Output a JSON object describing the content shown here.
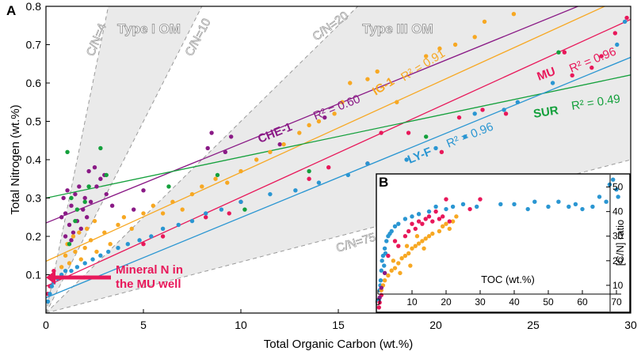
{
  "colors": {
    "MU": "#e8185a",
    "IG-1": "#f7a823",
    "CHE-1": "#8a1a86",
    "SUR": "#14a03c",
    "LY-F": "#2a96d2",
    "mineral": "#e8185a",
    "shade": "#eaeaea"
  },
  "chart_data": [
    {
      "panel_label": "A",
      "type": "scatter",
      "xlabel": "Total Organic Carbon (wt.%)",
      "ylabel": "Total Nitrogen (wt.%)",
      "xlim": [
        0,
        30
      ],
      "ylim": [
        0,
        0.8
      ],
      "xticks": [
        "0",
        "5",
        "10",
        "15",
        "20",
        "25",
        "30"
      ],
      "yticks": [
        "0.1",
        "0.2",
        "0.3",
        "0.4",
        "0.5",
        "0.6",
        "0.7",
        "0.8"
      ],
      "zones": [
        {
          "label": "Type I OM",
          "cn_low": 4,
          "cn_high": 10
        },
        {
          "label": "Type III OM",
          "cn_low": 20,
          "cn_high": 75
        }
      ],
      "cn_lines": [
        {
          "label": "C/N=4",
          "slope": 0.25
        },
        {
          "label": "C/N=10",
          "slope": 0.1
        },
        {
          "label": "C/N=20",
          "slope": 0.05
        },
        {
          "label": "C/N=75",
          "slope": 0.01333
        }
      ],
      "series": [
        {
          "name": "CHE-1",
          "r2_label": "R² = 0.60",
          "fit": [
            0.235,
            0.0207
          ],
          "points": [
            [
              0.9,
              0.3
            ],
            [
              1.1,
              0.32
            ],
            [
              1.3,
              0.28
            ],
            [
              1.5,
              0.31
            ],
            [
              1.7,
              0.33
            ],
            [
              2.0,
              0.3
            ],
            [
              2.3,
              0.29
            ],
            [
              2.6,
              0.33
            ],
            [
              3.0,
              0.36
            ],
            [
              1.0,
              0.26
            ],
            [
              1.2,
              0.23
            ],
            [
              1.4,
              0.21
            ],
            [
              1.6,
              0.24
            ],
            [
              1.9,
              0.27
            ],
            [
              2.2,
              0.37
            ],
            [
              2.5,
              0.38
            ],
            [
              2.8,
              0.35
            ],
            [
              3.1,
              0.31
            ],
            [
              3.4,
              0.28
            ],
            [
              0.8,
              0.25
            ],
            [
              1.0,
              0.2
            ],
            [
              1.3,
              0.19
            ],
            [
              1.8,
              0.22
            ],
            [
              2.1,
              0.25
            ],
            [
              4.5,
              0.27
            ],
            [
              5.0,
              0.32
            ],
            [
              8.5,
              0.47
            ],
            [
              8.3,
              0.43
            ],
            [
              9.5,
              0.46
            ],
            [
              9.2,
              0.42
            ],
            [
              12.0,
              0.44
            ],
            [
              14.3,
              0.51
            ]
          ]
        },
        {
          "name": "IG-1",
          "r2_label": "R² = 0.91",
          "fit": [
            0.135,
            0.0232
          ],
          "points": [
            [
              0.8,
              0.12
            ],
            [
              1.0,
              0.15
            ],
            [
              1.2,
              0.13
            ],
            [
              1.5,
              0.16
            ],
            [
              1.8,
              0.14
            ],
            [
              2.0,
              0.17
            ],
            [
              2.3,
              0.19
            ],
            [
              2.6,
              0.16
            ],
            [
              1.1,
              0.18
            ],
            [
              1.4,
              0.2
            ],
            [
              1.7,
              0.21
            ],
            [
              2.1,
              0.22
            ],
            [
              2.5,
              0.24
            ],
            [
              3.0,
              0.21
            ],
            [
              3.3,
              0.18
            ],
            [
              3.7,
              0.23
            ],
            [
              4.0,
              0.25
            ],
            [
              4.4,
              0.22
            ],
            [
              5.0,
              0.26
            ],
            [
              5.5,
              0.28
            ],
            [
              6.0,
              0.26
            ],
            [
              6.5,
              0.29
            ],
            [
              7.0,
              0.27
            ],
            [
              7.5,
              0.31
            ],
            [
              8.0,
              0.33
            ],
            [
              8.7,
              0.35
            ],
            [
              9.3,
              0.34
            ],
            [
              10.0,
              0.37
            ],
            [
              10.8,
              0.4
            ],
            [
              11.5,
              0.42
            ],
            [
              12.2,
              0.44
            ],
            [
              13.0,
              0.47
            ],
            [
              13.5,
              0.49
            ],
            [
              14.0,
              0.5
            ],
            [
              14.8,
              0.52
            ],
            [
              15.2,
              0.55
            ],
            [
              15.6,
              0.6
            ],
            [
              16.5,
              0.61
            ],
            [
              17.0,
              0.63
            ],
            [
              18.0,
              0.55
            ],
            [
              19.5,
              0.67
            ],
            [
              20.2,
              0.69
            ],
            [
              21.0,
              0.7
            ],
            [
              22.0,
              0.72
            ],
            [
              22.5,
              0.76
            ],
            [
              24.0,
              0.78
            ]
          ]
        },
        {
          "name": "MU",
          "r2_label": "R² = 0.96",
          "fit": [
            0.07,
            0.0232
          ],
          "points": [
            [
              0.1,
              0.05
            ],
            [
              0.2,
              0.07
            ],
            [
              0.3,
              0.09
            ],
            [
              0.4,
              0.11
            ],
            [
              5.0,
              0.18
            ],
            [
              6.0,
              0.2
            ],
            [
              8.2,
              0.25
            ],
            [
              9.4,
              0.26
            ],
            [
              10.0,
              0.29
            ],
            [
              13.5,
              0.35
            ],
            [
              14.5,
              0.38
            ],
            [
              16.5,
              0.39
            ],
            [
              17.2,
              0.47
            ],
            [
              18.6,
              0.47
            ],
            [
              20.3,
              0.42
            ],
            [
              21.2,
              0.51
            ],
            [
              22.4,
              0.53
            ],
            [
              23.6,
              0.52
            ],
            [
              26.6,
              0.68
            ],
            [
              27.0,
              0.62
            ],
            [
              28.0,
              0.64
            ],
            [
              28.5,
              0.67
            ],
            [
              29.2,
              0.73
            ],
            [
              29.8,
              0.77
            ]
          ]
        },
        {
          "name": "SUR",
          "r2_label": "R² = 0.49",
          "fit": [
            0.3,
            0.0107
          ],
          "points": [
            [
              1.1,
              0.42
            ],
            [
              1.3,
              0.3
            ],
            [
              1.6,
              0.27
            ],
            [
              2.0,
              0.29
            ],
            [
              2.8,
              0.43
            ],
            [
              3.1,
              0.36
            ],
            [
              1.5,
              0.24
            ],
            [
              1.2,
              0.18
            ],
            [
              2.2,
              0.33
            ],
            [
              6.3,
              0.33
            ],
            [
              8.8,
              0.36
            ],
            [
              10.2,
              0.27
            ],
            [
              13.5,
              0.37
            ],
            [
              19.5,
              0.46
            ],
            [
              26.3,
              0.68
            ]
          ]
        },
        {
          "name": "LY-F",
          "r2_label": "R² = 0.96",
          "fit": [
            0.04,
            0.0209
          ],
          "points": [
            [
              0.1,
              0.03
            ],
            [
              0.2,
              0.05
            ],
            [
              0.3,
              0.07
            ],
            [
              0.4,
              0.08
            ],
            [
              0.6,
              0.09
            ],
            [
              0.8,
              0.1
            ],
            [
              1.0,
              0.11
            ],
            [
              1.3,
              0.11
            ],
            [
              1.6,
              0.12
            ],
            [
              2.0,
              0.13
            ],
            [
              2.4,
              0.14
            ],
            [
              2.8,
              0.15
            ],
            [
              3.2,
              0.16
            ],
            [
              3.7,
              0.17
            ],
            [
              4.2,
              0.18
            ],
            [
              4.8,
              0.19
            ],
            [
              5.4,
              0.2
            ],
            [
              6.0,
              0.22
            ],
            [
              6.8,
              0.23
            ],
            [
              7.5,
              0.24
            ],
            [
              8.2,
              0.26
            ],
            [
              9.0,
              0.27
            ],
            [
              10.0,
              0.29
            ],
            [
              11.5,
              0.31
            ],
            [
              12.8,
              0.32
            ],
            [
              14.0,
              0.34
            ],
            [
              15.5,
              0.36
            ],
            [
              16.5,
              0.39
            ],
            [
              18.5,
              0.4
            ],
            [
              20.0,
              0.43
            ],
            [
              21.5,
              0.46
            ],
            [
              22.0,
              0.52
            ],
            [
              23.5,
              0.53
            ],
            [
              24.2,
              0.55
            ],
            [
              26.0,
              0.6
            ],
            [
              29.3,
              0.7
            ],
            [
              29.7,
              0.76
            ]
          ]
        }
      ],
      "annotation": {
        "line1": "Mineral N in",
        "line2": "the MU well",
        "at": [
          0,
          0.09
        ]
      }
    },
    {
      "panel_label": "B",
      "type": "scatter",
      "xlabel": "TOC (wt.%)",
      "ylabel": "[C/N] ratio",
      "xlim": [
        0,
        70
      ],
      "ylim": [
        0,
        55
      ],
      "xticks": [
        "0",
        "10",
        "20",
        "30",
        "40",
        "50",
        "60",
        "70"
      ],
      "yticks": [
        "10",
        "20",
        "30",
        "40",
        "50"
      ],
      "series": [
        {
          "name": "LY-F",
          "points": [
            [
              0.3,
              4
            ],
            [
              0.5,
              8
            ],
            [
              0.8,
              12
            ],
            [
              1.0,
              16
            ],
            [
              1.2,
              20
            ],
            [
              1.5,
              22
            ],
            [
              2.0,
              25
            ],
            [
              2.5,
              28
            ],
            [
              3.0,
              30
            ],
            [
              3.5,
              31
            ],
            [
              0.7,
              10
            ],
            [
              1.8,
              18
            ],
            [
              2.2,
              23
            ],
            [
              4.0,
              32
            ],
            [
              5.0,
              34
            ],
            [
              6.0,
              35
            ],
            [
              8.0,
              37
            ],
            [
              10.0,
              38
            ],
            [
              12.0,
              39
            ],
            [
              15.0,
              40
            ],
            [
              17.0,
              42
            ],
            [
              20.0,
              41
            ],
            [
              22.0,
              42
            ],
            [
              25.0,
              43
            ],
            [
              29.0,
              42
            ],
            [
              36.0,
              43
            ],
            [
              40.0,
              43
            ],
            [
              44.0,
              41
            ],
            [
              46.0,
              44
            ],
            [
              50.0,
              42
            ],
            [
              53.0,
              44
            ],
            [
              56.0,
              42
            ],
            [
              58.0,
              43
            ],
            [
              60.0,
              41
            ],
            [
              63.0,
              42
            ],
            [
              65.0,
              46
            ],
            [
              67.0,
              44
            ],
            [
              68.0,
              51
            ],
            [
              69.0,
              53
            ],
            [
              70.0,
              49
            ],
            [
              70.5,
              46
            ]
          ]
        },
        {
          "name": "IG-1",
          "points": [
            [
              1.0,
              8
            ],
            [
              1.5,
              10
            ],
            [
              2.0,
              12
            ],
            [
              3.0,
              14
            ],
            [
              4.0,
              16
            ],
            [
              5.0,
              17
            ],
            [
              6.0,
              19
            ],
            [
              7.0,
              21
            ],
            [
              8.0,
              22
            ],
            [
              9.0,
              23
            ],
            [
              10.0,
              25
            ],
            [
              11.0,
              26
            ],
            [
              12.0,
              27
            ],
            [
              13.0,
              28
            ],
            [
              14.0,
              29
            ],
            [
              15.0,
              30
            ],
            [
              16.0,
              31
            ],
            [
              18.0,
              32
            ],
            [
              19.0,
              34
            ],
            [
              20.0,
              35
            ],
            [
              21.0,
              33
            ],
            [
              22.0,
              36
            ],
            [
              23.0,
              38
            ],
            [
              4.5,
              20
            ],
            [
              6.5,
              15
            ],
            [
              8.5,
              26
            ],
            [
              11.5,
              30
            ],
            [
              13.5,
              25
            ],
            [
              9.5,
              18
            ]
          ]
        },
        {
          "name": "MU",
          "points": [
            [
              0.3,
              1
            ],
            [
              0.5,
              3
            ],
            [
              1.0,
              6
            ],
            [
              3.0,
              22
            ],
            [
              5.0,
              28
            ],
            [
              6.0,
              26
            ],
            [
              8.0,
              30
            ],
            [
              9.0,
              32
            ],
            [
              10.0,
              35
            ],
            [
              11.0,
              33
            ],
            [
              12.0,
              36
            ],
            [
              13.0,
              35
            ],
            [
              14.0,
              37
            ],
            [
              15.0,
              38
            ],
            [
              16.0,
              36
            ],
            [
              17.0,
              40
            ],
            [
              18.0,
              37
            ],
            [
              19.0,
              38
            ],
            [
              20.0,
              45
            ],
            [
              21.0,
              36
            ],
            [
              27.0,
              41
            ],
            [
              30.0,
              45
            ]
          ]
        },
        {
          "name": "CHE-1",
          "points": [
            [
              0.5,
              5
            ],
            [
              1.0,
              9
            ],
            [
              2.0,
              15
            ]
          ]
        }
      ]
    }
  ]
}
